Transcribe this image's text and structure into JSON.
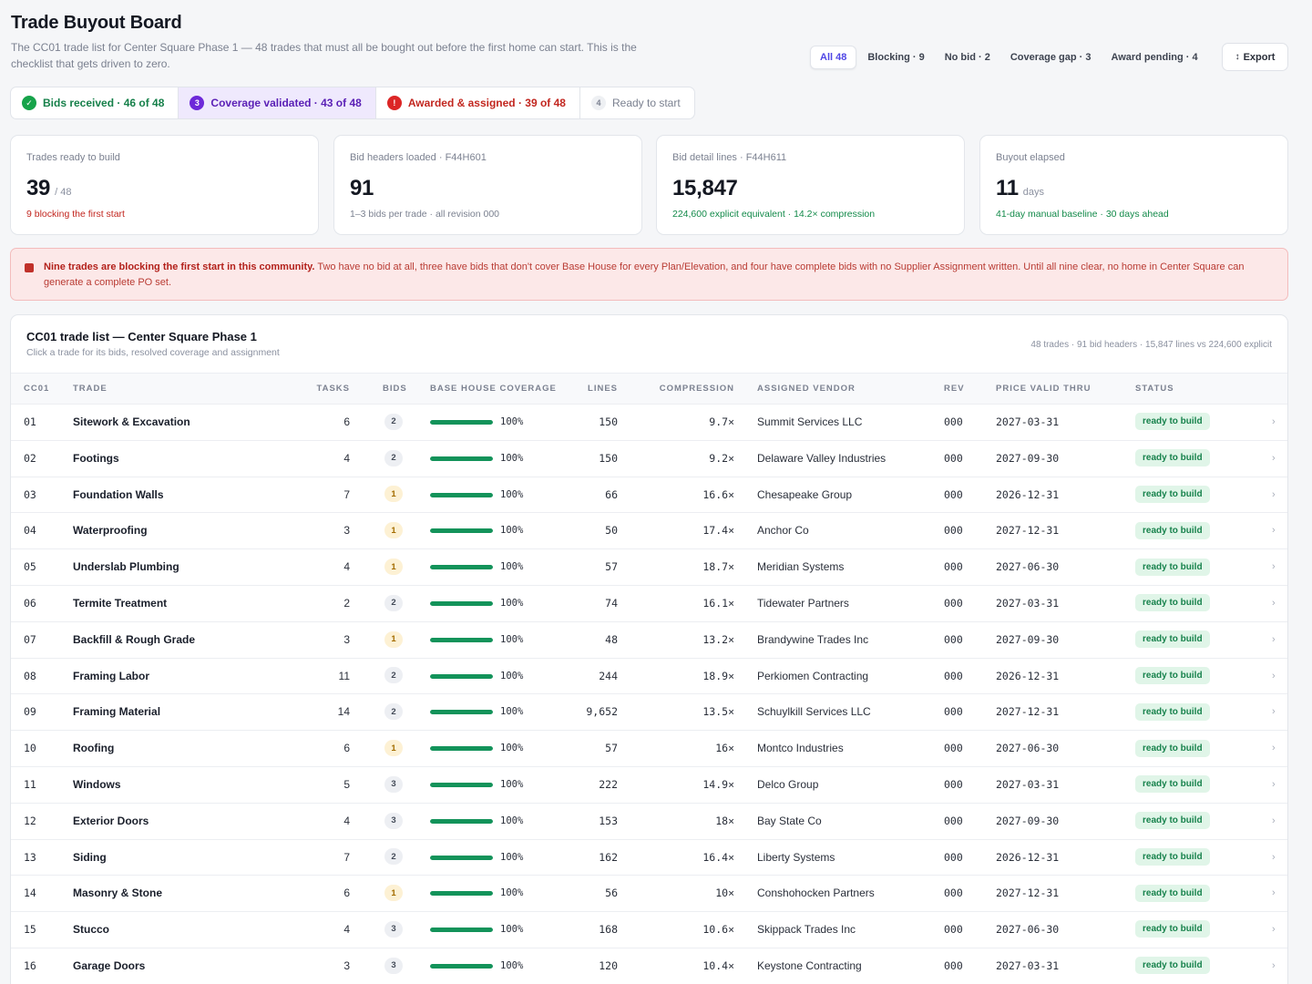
{
  "header": {
    "title": "Trade Buyout Board",
    "subtitle": "The CC01 trade list for Center Square Phase 1 — 48 trades that must all be bought out before the first home can start. This is the checklist that gets driven to zero."
  },
  "filters": [
    {
      "label": "All 48",
      "active": true
    },
    {
      "label": "Blocking · 9",
      "active": false
    },
    {
      "label": "No bid · 2",
      "active": false
    },
    {
      "label": "Coverage gap · 3",
      "active": false
    },
    {
      "label": "Award pending · 4",
      "active": false
    }
  ],
  "export": {
    "icon": "↕",
    "label": "Export"
  },
  "stages": [
    {
      "marker": "✓",
      "label": "Bids received · 46 of 48",
      "tone": "green"
    },
    {
      "marker": "3",
      "label": "Coverage validated · 43 of 48",
      "tone": "purple"
    },
    {
      "marker": "!",
      "label": "Awarded & assigned · 39 of 48",
      "tone": "red"
    },
    {
      "marker": "4",
      "label": "Ready to start",
      "tone": "gray"
    }
  ],
  "kpis": [
    {
      "label": "Trades ready to build",
      "value": "39",
      "unit": "/ 48",
      "note": "9 blocking the first start",
      "tone": "red"
    },
    {
      "label": "Bid headers loaded · F44H601",
      "value": "91",
      "unit": "",
      "note": "1–3 bids per trade · all revision 000",
      "tone": "gray"
    },
    {
      "label": "Bid detail lines · F44H611",
      "value": "15,847",
      "unit": "",
      "note": "224,600 explicit equivalent · 14.2× compression",
      "tone": "green"
    },
    {
      "label": "Buyout elapsed",
      "value": "11",
      "unit": "days",
      "note": "41-day manual baseline · 30 days ahead",
      "tone": "green"
    }
  ],
  "alert": {
    "headline": "Nine trades are blocking the first start in this community.",
    "body": " Two have no bid at all, three have bids that don't cover Base House for every Plan/Elevation, and four have complete bids with no Supplier Assignment written. Until all nine clear, no home in Center Square can generate a complete PO set."
  },
  "table": {
    "title": "CC01 trade list — Center Square Phase 1",
    "subtitle": "Click a trade for its bids, resolved coverage and assignment",
    "meta": "48 trades · 91 bid headers · 15,847 lines vs 224,600 explicit",
    "columns": {
      "code": "CC01",
      "trade": "Trade",
      "tasks": "Tasks",
      "bids": "Bids",
      "coverage": "Base House Coverage",
      "lines": "Lines",
      "compression": "Compression",
      "vendor": "Assigned Vendor",
      "rev": "Rev",
      "valid": "Price Valid Thru",
      "status": "Status"
    },
    "rows": [
      {
        "code": "01",
        "trade": "Sitework & Excavation",
        "tasks": "6",
        "bids": "2",
        "coverage": "100%",
        "coverage_frac": 1.0,
        "lines": "150",
        "compression": "9.7×",
        "vendor": "Summit Services LLC",
        "rev": "000",
        "valid": "2027-03-31",
        "status": "ready to build"
      },
      {
        "code": "02",
        "trade": "Footings",
        "tasks": "4",
        "bids": "2",
        "coverage": "100%",
        "coverage_frac": 1.0,
        "lines": "150",
        "compression": "9.2×",
        "vendor": "Delaware Valley Industries",
        "rev": "000",
        "valid": "2027-09-30",
        "status": "ready to build"
      },
      {
        "code": "03",
        "trade": "Foundation Walls",
        "tasks": "7",
        "bids": "1",
        "coverage": "100%",
        "coverage_frac": 1.0,
        "lines": "66",
        "compression": "16.6×",
        "vendor": "Chesapeake Group",
        "rev": "000",
        "valid": "2026-12-31",
        "status": "ready to build"
      },
      {
        "code": "04",
        "trade": "Waterproofing",
        "tasks": "3",
        "bids": "1",
        "coverage": "100%",
        "coverage_frac": 1.0,
        "lines": "50",
        "compression": "17.4×",
        "vendor": "Anchor Co",
        "rev": "000",
        "valid": "2027-12-31",
        "status": "ready to build"
      },
      {
        "code": "05",
        "trade": "Underslab Plumbing",
        "tasks": "4",
        "bids": "1",
        "coverage": "100%",
        "coverage_frac": 1.0,
        "lines": "57",
        "compression": "18.7×",
        "vendor": "Meridian Systems",
        "rev": "000",
        "valid": "2027-06-30",
        "status": "ready to build"
      },
      {
        "code": "06",
        "trade": "Termite Treatment",
        "tasks": "2",
        "bids": "2",
        "coverage": "100%",
        "coverage_frac": 1.0,
        "lines": "74",
        "compression": "16.1×",
        "vendor": "Tidewater Partners",
        "rev": "000",
        "valid": "2027-03-31",
        "status": "ready to build"
      },
      {
        "code": "07",
        "trade": "Backfill & Rough Grade",
        "tasks": "3",
        "bids": "1",
        "coverage": "100%",
        "coverage_frac": 1.0,
        "lines": "48",
        "compression": "13.2×",
        "vendor": "Brandywine Trades Inc",
        "rev": "000",
        "valid": "2027-09-30",
        "status": "ready to build"
      },
      {
        "code": "08",
        "trade": "Framing Labor",
        "tasks": "11",
        "bids": "2",
        "coverage": "100%",
        "coverage_frac": 1.0,
        "lines": "244",
        "compression": "18.9×",
        "vendor": "Perkiomen Contracting",
        "rev": "000",
        "valid": "2026-12-31",
        "status": "ready to build"
      },
      {
        "code": "09",
        "trade": "Framing Material",
        "tasks": "14",
        "bids": "2",
        "coverage": "100%",
        "coverage_frac": 1.0,
        "lines": "9,652",
        "compression": "13.5×",
        "vendor": "Schuylkill Services LLC",
        "rev": "000",
        "valid": "2027-12-31",
        "status": "ready to build"
      },
      {
        "code": "10",
        "trade": "Roofing",
        "tasks": "6",
        "bids": "1",
        "coverage": "100%",
        "coverage_frac": 1.0,
        "lines": "57",
        "compression": "16×",
        "vendor": "Montco Industries",
        "rev": "000",
        "valid": "2027-06-30",
        "status": "ready to build"
      },
      {
        "code": "11",
        "trade": "Windows",
        "tasks": "5",
        "bids": "3",
        "coverage": "100%",
        "coverage_frac": 1.0,
        "lines": "222",
        "compression": "14.9×",
        "vendor": "Delco Group",
        "rev": "000",
        "valid": "2027-03-31",
        "status": "ready to build"
      },
      {
        "code": "12",
        "trade": "Exterior Doors",
        "tasks": "4",
        "bids": "3",
        "coverage": "100%",
        "coverage_frac": 1.0,
        "lines": "153",
        "compression": "18×",
        "vendor": "Bay State Co",
        "rev": "000",
        "valid": "2027-09-30",
        "status": "ready to build"
      },
      {
        "code": "13",
        "trade": "Siding",
        "tasks": "7",
        "bids": "2",
        "coverage": "100%",
        "coverage_frac": 1.0,
        "lines": "162",
        "compression": "16.4×",
        "vendor": "Liberty Systems",
        "rev": "000",
        "valid": "2026-12-31",
        "status": "ready to build"
      },
      {
        "code": "14",
        "trade": "Masonry & Stone",
        "tasks": "6",
        "bids": "1",
        "coverage": "100%",
        "coverage_frac": 1.0,
        "lines": "56",
        "compression": "10×",
        "vendor": "Conshohocken Partners",
        "rev": "000",
        "valid": "2027-12-31",
        "status": "ready to build"
      },
      {
        "code": "15",
        "trade": "Stucco",
        "tasks": "4",
        "bids": "3",
        "coverage": "100%",
        "coverage_frac": 1.0,
        "lines": "168",
        "compression": "10.6×",
        "vendor": "Skippack Trades Inc",
        "rev": "000",
        "valid": "2027-06-30",
        "status": "ready to build"
      },
      {
        "code": "16",
        "trade": "Garage Doors",
        "tasks": "3",
        "bids": "3",
        "coverage": "100%",
        "coverage_frac": 1.0,
        "lines": "120",
        "compression": "10.4×",
        "vendor": "Keystone Contracting",
        "rev": "000",
        "valid": "2027-03-31",
        "status": "ready to build"
      }
    ]
  }
}
